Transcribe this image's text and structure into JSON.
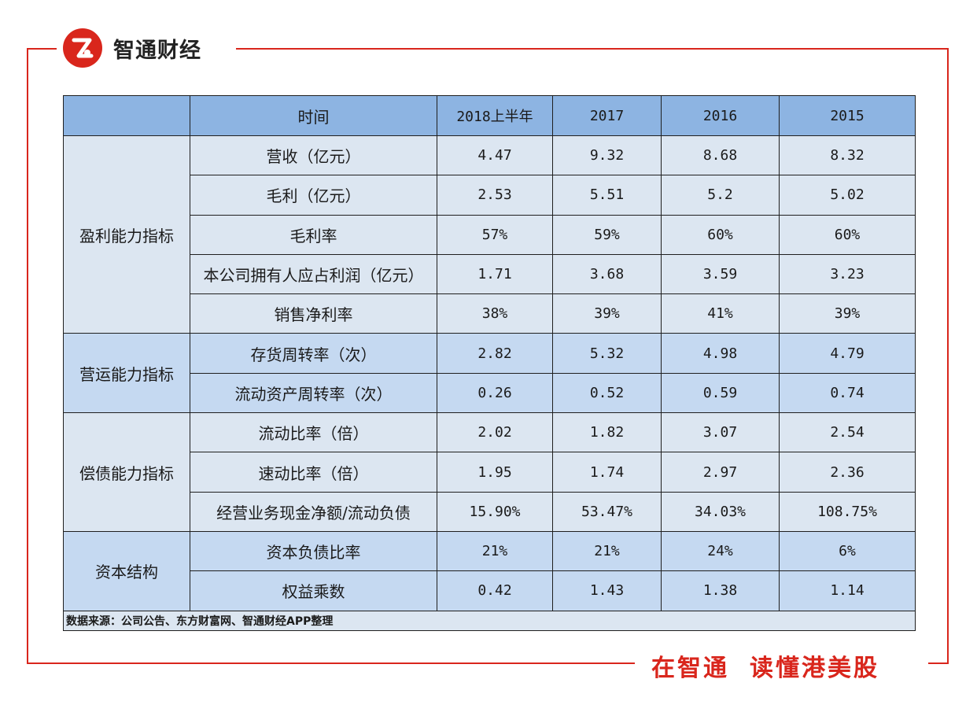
{
  "brand": {
    "logo_text": "智通财经",
    "accent_color": "#d9261c",
    "slogan_part1": "在智通",
    "slogan_part2": "读懂港美股",
    "watermark_text": "智通财经"
  },
  "table": {
    "header": [
      "时间",
      "2018上半年",
      "2017",
      "2016",
      "2015"
    ],
    "groups": [
      {
        "category": "盈利能力指标",
        "rows": [
          {
            "metric": "营收（亿元）",
            "values": [
              "4.47",
              "9.32",
              "8.68",
              "8.32"
            ]
          },
          {
            "metric": "毛利（亿元）",
            "values": [
              "2.53",
              "5.51",
              "5.2",
              "5.02"
            ]
          },
          {
            "metric": "毛利率",
            "values": [
              "57%",
              "59%",
              "60%",
              "60%"
            ]
          },
          {
            "metric": "本公司拥有人应占利润（亿元）",
            "values": [
              "1.71",
              "3.68",
              "3.59",
              "3.23"
            ]
          },
          {
            "metric": "销售净利率",
            "values": [
              "38%",
              "39%",
              "41%",
              "39%"
            ]
          }
        ]
      },
      {
        "category": "营运能力指标",
        "rows": [
          {
            "metric": "存货周转率（次）",
            "values": [
              "2.82",
              "5.32",
              "4.98",
              "4.79"
            ]
          },
          {
            "metric": "流动资产周转率（次）",
            "values": [
              "0.26",
              "0.52",
              "0.59",
              "0.74"
            ]
          }
        ]
      },
      {
        "category": "偿债能力指标",
        "rows": [
          {
            "metric": "流动比率（倍）",
            "values": [
              "2.02",
              "1.82",
              "3.07",
              "2.54"
            ]
          },
          {
            "metric": "速动比率（倍）",
            "values": [
              "1.95",
              "1.74",
              "2.97",
              "2.36"
            ]
          },
          {
            "metric": "经营业务现金净额/流动负债",
            "values": [
              "15.90%",
              "53.47%",
              "34.03%",
              "108.75%"
            ]
          }
        ]
      },
      {
        "category": "资本结构",
        "rows": [
          {
            "metric": "资本负债比率",
            "values": [
              "21%",
              "21%",
              "24%",
              "6%"
            ]
          },
          {
            "metric": "权益乘数",
            "values": [
              "0.42",
              "1.43",
              "1.38",
              "1.14"
            ]
          }
        ]
      }
    ],
    "source": "数据来源：公司公告、东方财富网、智通财经APP整理"
  }
}
